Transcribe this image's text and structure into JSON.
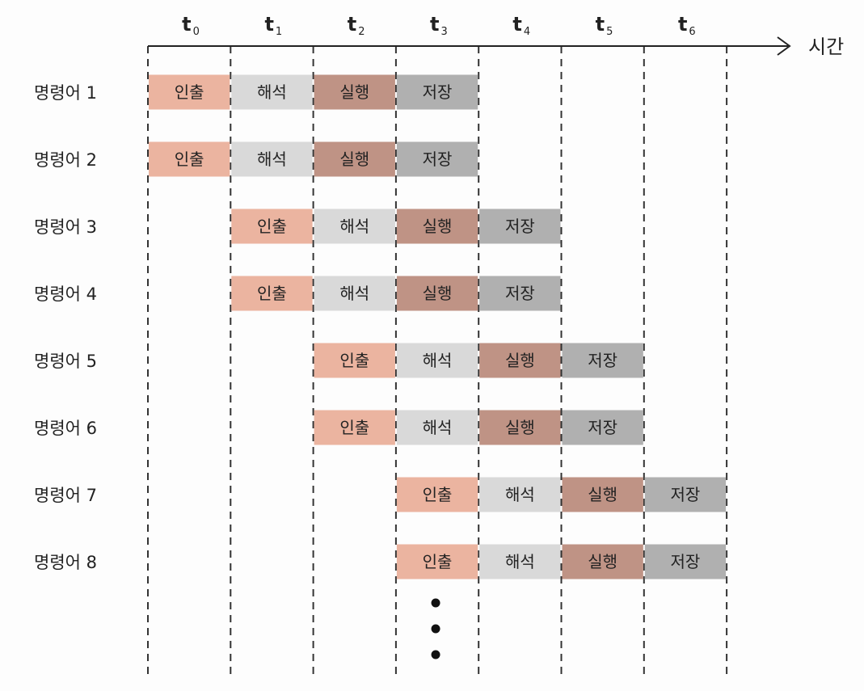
{
  "axis": {
    "label": "시간",
    "time_slots": [
      {
        "base": "t",
        "sub": "0"
      },
      {
        "base": "t",
        "sub": "1"
      },
      {
        "base": "t",
        "sub": "2"
      },
      {
        "base": "t",
        "sub": "3"
      },
      {
        "base": "t",
        "sub": "4"
      },
      {
        "base": "t",
        "sub": "5"
      },
      {
        "base": "t",
        "sub": "6"
      }
    ]
  },
  "stages": [
    {
      "name": "인출",
      "color": "#ebb4a0"
    },
    {
      "name": "해석",
      "color": "#d9d9d9"
    },
    {
      "name": "실행",
      "color": "#bf9385"
    },
    {
      "name": "저장",
      "color": "#b0b0b0"
    }
  ],
  "instructions": [
    {
      "label": "명령어 1",
      "start": 0
    },
    {
      "label": "명령어 2",
      "start": 0
    },
    {
      "label": "명령어 3",
      "start": 1
    },
    {
      "label": "명령어 4",
      "start": 1
    },
    {
      "label": "명령어 5",
      "start": 2
    },
    {
      "label": "명령어 6",
      "start": 2
    },
    {
      "label": "명령어 7",
      "start": 3
    },
    {
      "label": "명령어 8",
      "start": 3
    }
  ],
  "continuation": {
    "symbol": "⋮",
    "dot_count": 3,
    "slot": 3
  }
}
